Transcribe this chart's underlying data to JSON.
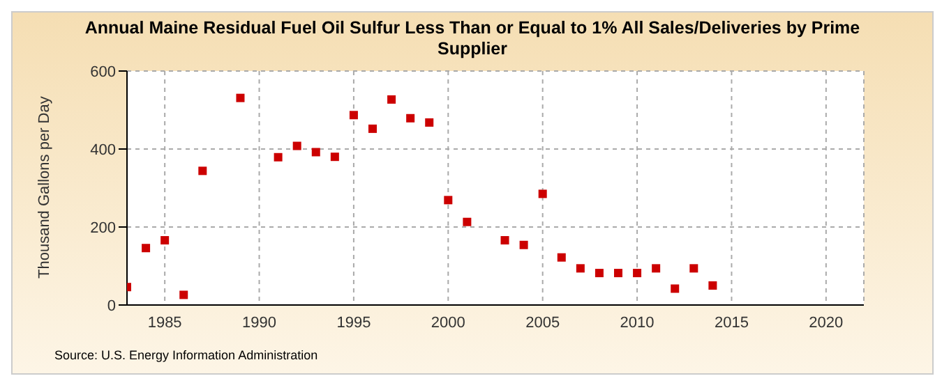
{
  "chart_data": {
    "type": "scatter",
    "title": "Annual Maine Residual Fuel Oil Sulfur Less Than or Equal to 1% All Sales/Deliveries by Prime Supplier",
    "ylabel": "Thousand Gallons per Day",
    "annotations": [
      "Source: U.S. Energy Information Administration"
    ],
    "x": [
      1983,
      1984,
      1985,
      1986,
      1987,
      1989,
      1991,
      1992,
      1993,
      1994,
      1995,
      1996,
      1997,
      1998,
      1999,
      2000,
      2001,
      2003,
      2004,
      2005,
      2006,
      2007,
      2008,
      2009,
      2010,
      2011,
      2012,
      2013,
      2014
    ],
    "series": [
      {
        "color": "#cc0000",
        "values": [
          46,
          146,
          166,
          26,
          344,
          531,
          379,
          408,
          392,
          380,
          487,
          452,
          527,
          479,
          468,
          269,
          213,
          166,
          154,
          285,
          122,
          94,
          82,
          82,
          82,
          94,
          42,
          94,
          50
        ]
      }
    ],
    "xlim": [
      1983,
      2022
    ],
    "xticks": [
      1985,
      1990,
      1995,
      2000,
      2005,
      2010,
      2015,
      2020
    ],
    "ylim": [
      0,
      600
    ],
    "yticks": [
      0,
      200,
      400,
      600
    ],
    "grid": true,
    "marker": "square"
  }
}
